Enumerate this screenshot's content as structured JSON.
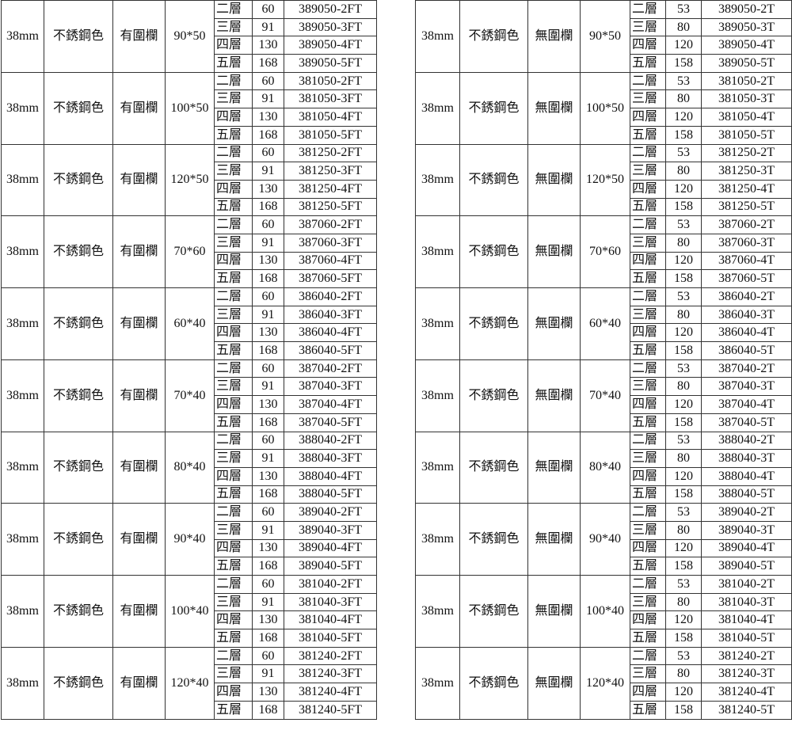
{
  "levels": [
    "二層",
    "三層",
    "四層",
    "五層"
  ],
  "tables": [
    {
      "diameter": "38mm",
      "color": "不銹鋼色",
      "rail": "有圍欄",
      "heights": [
        "60",
        "91",
        "130",
        "168"
      ],
      "suffixes": [
        "-2FT",
        "-3FT",
        "-4FT",
        "-5FT"
      ],
      "groups": [
        {
          "size": "90*50",
          "codes": [
            "389050-2FT",
            "389050-3FT",
            "389050-4FT",
            "389050-5FT"
          ]
        },
        {
          "size": "100*50",
          "codes": [
            "381050-2FT",
            "381050-3FT",
            "381050-4FT",
            "381050-5FT"
          ]
        },
        {
          "size": "120*50",
          "codes": [
            "381250-2FT",
            "381250-3FT",
            "381250-4FT",
            "381250-5FT"
          ]
        },
        {
          "size": "70*60",
          "codes": [
            "387060-2FT",
            "387060-3FT",
            "387060-4FT",
            "387060-5FT"
          ]
        },
        {
          "size": "60*40",
          "codes": [
            "386040-2FT",
            "386040-3FT",
            "386040-4FT",
            "386040-5FT"
          ]
        },
        {
          "size": "70*40",
          "codes": [
            "387040-2FT",
            "387040-3FT",
            "387040-4FT",
            "387040-5FT"
          ]
        },
        {
          "size": "80*40",
          "codes": [
            "388040-2FT",
            "388040-3FT",
            "388040-4FT",
            "388040-5FT"
          ]
        },
        {
          "size": "90*40",
          "codes": [
            "389040-2FT",
            "389040-3FT",
            "389040-4FT",
            "389040-5FT"
          ]
        },
        {
          "size": "100*40",
          "codes": [
            "381040-2FT",
            "381040-3FT",
            "381040-4FT",
            "381040-5FT"
          ]
        },
        {
          "size": "120*40",
          "codes": [
            "381240-2FT",
            "381240-3FT",
            "381240-4FT",
            "381240-5FT"
          ]
        }
      ]
    },
    {
      "diameter": "38mm",
      "color": "不銹鋼色",
      "rail": "無圍欄",
      "heights": [
        "53",
        "80",
        "120",
        "158"
      ],
      "groups": [
        {
          "size": "90*50",
          "codes": [
            "389050-2T",
            "389050-3T",
            "389050-4T",
            "389050-5T"
          ]
        },
        {
          "size": "100*50",
          "codes": [
            "381050-2T",
            "381050-3T",
            "381050-4T",
            "381050-5T"
          ]
        },
        {
          "size": "120*50",
          "codes": [
            "381250-2T",
            "381250-3T",
            "381250-4T",
            "381250-5T"
          ]
        },
        {
          "size": "70*60",
          "codes": [
            "387060-2T",
            "387060-3T",
            "387060-4T",
            "387060-5T"
          ]
        },
        {
          "size": "60*40",
          "codes": [
            "386040-2T",
            "386040-3T",
            "386040-4T",
            "386040-5T"
          ]
        },
        {
          "size": "70*40",
          "codes": [
            "387040-2T",
            "387040-3T",
            "387040-4T",
            "387040-5T"
          ]
        },
        {
          "size": "80*40",
          "codes": [
            "388040-2T",
            "388040-3T",
            "388040-4T",
            "388040-5T"
          ]
        },
        {
          "size": "90*40",
          "codes": [
            "389040-2T",
            "389040-3T",
            "389040-4T",
            "389040-5T"
          ]
        },
        {
          "size": "100*40",
          "codes": [
            "381040-2T",
            "381040-3T",
            "381040-4T",
            "381040-5T"
          ]
        },
        {
          "size": "120*40",
          "codes": [
            "381240-2T",
            "381240-3T",
            "381240-4T",
            "381240-5T"
          ]
        }
      ]
    }
  ]
}
